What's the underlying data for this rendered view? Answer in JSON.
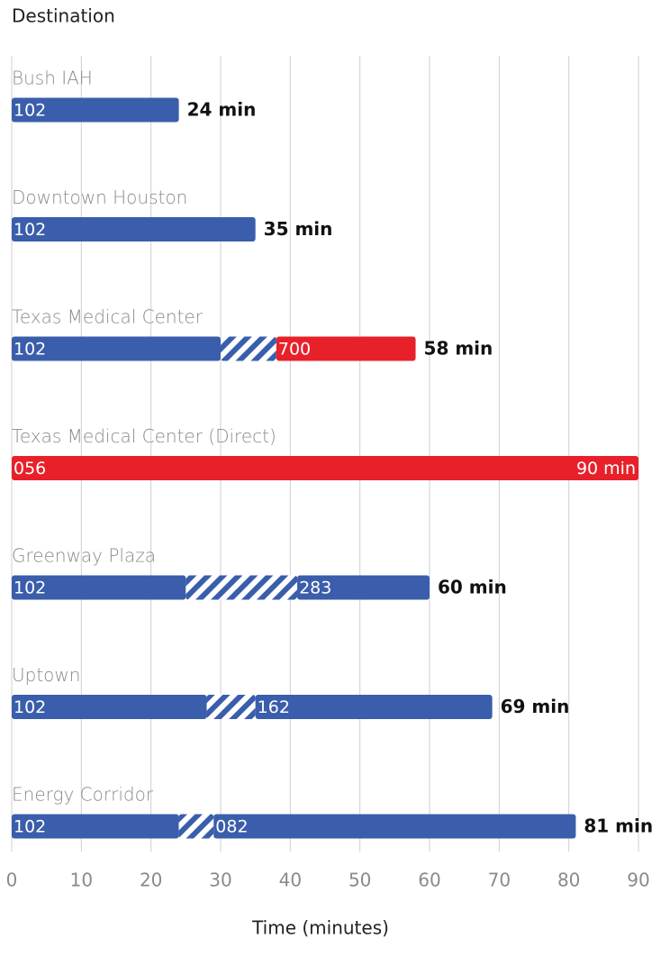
{
  "chart_data": {
    "type": "bar",
    "title": "Destination",
    "xlabel": "Time (minutes)",
    "xlim": [
      0,
      90
    ],
    "xticks": [
      0,
      10,
      20,
      30,
      40,
      50,
      60,
      70,
      80,
      90
    ],
    "grid": true,
    "categories": [
      "Bush IAH",
      "Downtown Houston",
      "Texas Medical Center",
      "Texas Medical Center (Direct)",
      "Greenway Plaza",
      "Uptown",
      "Energy Corridor"
    ],
    "rows": [
      {
        "segments": [
          {
            "name": "102",
            "color": "#3a5eab",
            "value": 24
          }
        ],
        "total_label": "24 min"
      },
      {
        "segments": [
          {
            "name": "102",
            "color": "#3a5eab",
            "value": 35
          }
        ],
        "total_label": "35 min"
      },
      {
        "segments": [
          {
            "name": "102",
            "color": "#3a5eab",
            "value": 30
          },
          {
            "hatched": true,
            "color": "#3a5eab",
            "value": 8
          },
          {
            "name": "700",
            "color": "#e8202a",
            "value": 20
          }
        ],
        "total_label": "58 min"
      },
      {
        "segments": [
          {
            "name": "056",
            "color": "#e8202a",
            "value": 90
          }
        ],
        "total_label": "90 min"
      },
      {
        "segments": [
          {
            "name": "102",
            "color": "#3a5eab",
            "value": 25
          },
          {
            "hatched": true,
            "color": "#3a5eab",
            "value": 16
          },
          {
            "name": "283",
            "color": "#3a5eab",
            "value": 19
          }
        ],
        "total_label": "60 min"
      },
      {
        "segments": [
          {
            "name": "102",
            "color": "#3a5eab",
            "value": 28
          },
          {
            "hatched": true,
            "color": "#3a5eab",
            "value": 7
          },
          {
            "name": "162",
            "color": "#3a5eab",
            "value": 34
          }
        ],
        "total_label": "69 min"
      },
      {
        "segments": [
          {
            "name": "102",
            "color": "#3a5eab",
            "value": 24
          },
          {
            "hatched": true,
            "color": "#3a5eab",
            "value": 5
          },
          {
            "name": "082",
            "color": "#3a5eab",
            "value": 52
          }
        ],
        "total_label": "81 min"
      }
    ]
  }
}
